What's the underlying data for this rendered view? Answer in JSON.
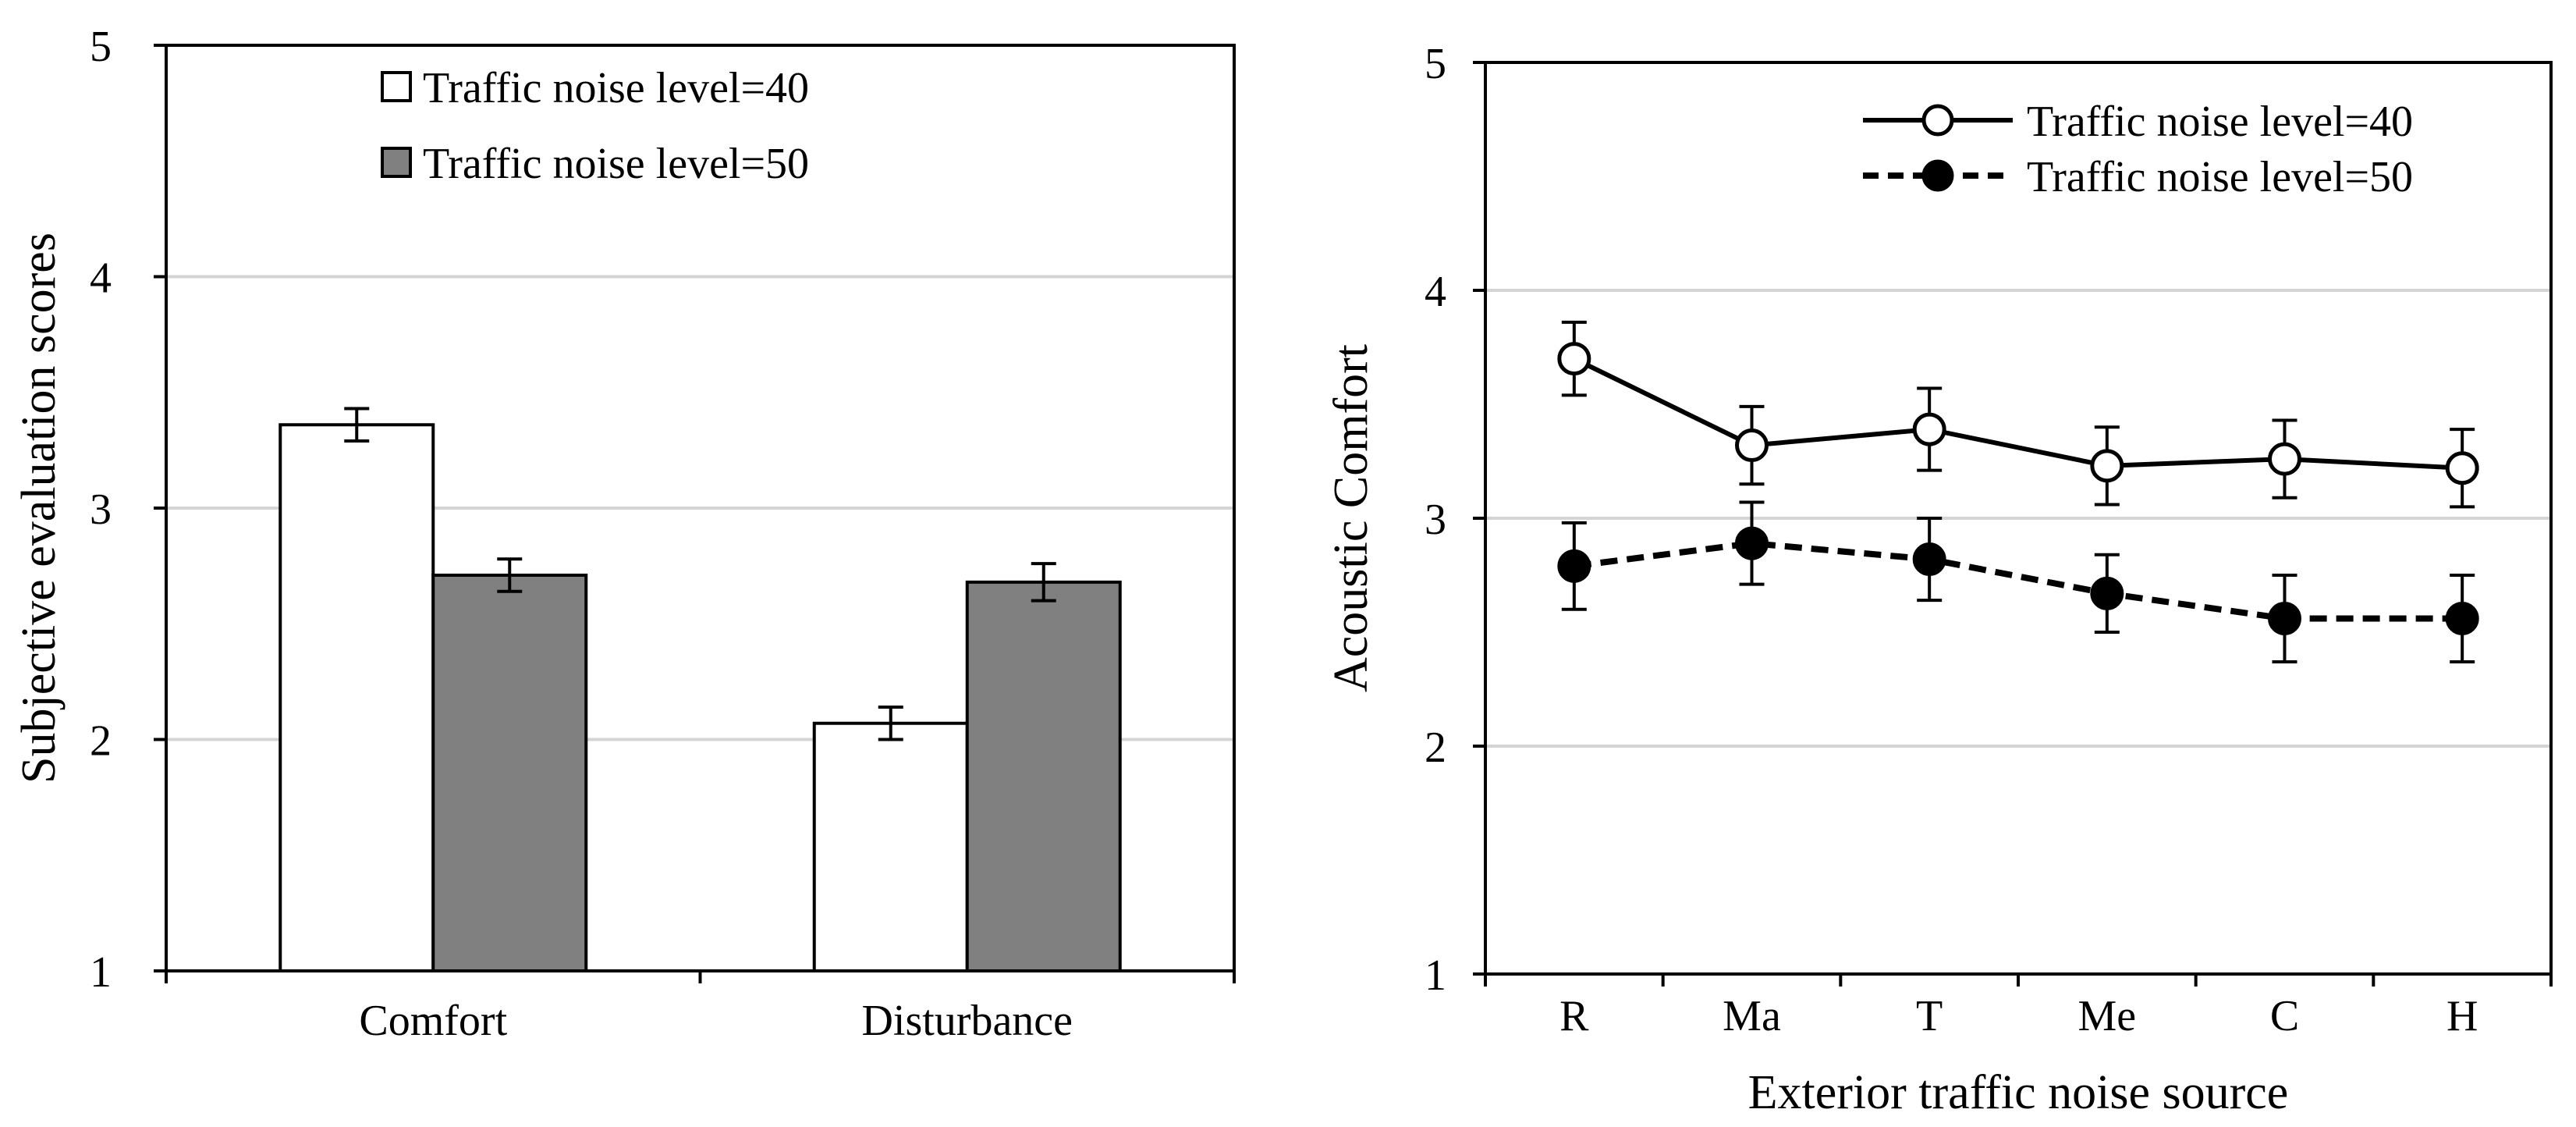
{
  "chart_data": [
    {
      "type": "bar",
      "categories": [
        "Comfort",
        "Disturbance"
      ],
      "series": [
        {
          "name": "Traffic noise level=40",
          "values": [
            3.36,
            2.07
          ],
          "errors": [
            0.07,
            0.07
          ],
          "color": "#ffffff"
        },
        {
          "name": "Traffic noise level=50",
          "values": [
            2.71,
            2.68
          ],
          "errors": [
            0.07,
            0.08
          ],
          "color": "#808080"
        }
      ],
      "ylabel": "Subjective evaluation scores",
      "xlabel": "",
      "ylim": [
        1,
        5
      ],
      "yticks": [
        "1",
        "2",
        "3",
        "4",
        "5"
      ],
      "grid": true,
      "legend_position": "top-center"
    },
    {
      "type": "line",
      "x": [
        "R",
        "Ma",
        "T",
        "Me",
        "C",
        "H"
      ],
      "series": [
        {
          "name": "Traffic noise level=40",
          "values": [
            3.7,
            3.32,
            3.39,
            3.23,
            3.26,
            3.22
          ],
          "errors": [
            0.16,
            0.17,
            0.18,
            0.17,
            0.17,
            0.17
          ],
          "marker": "open-circle",
          "line": "solid"
        },
        {
          "name": "Traffic noise level=50",
          "values": [
            2.79,
            2.89,
            2.82,
            2.67,
            2.56,
            2.56
          ],
          "errors": [
            0.19,
            0.18,
            0.18,
            0.17,
            0.19,
            0.19
          ],
          "marker": "filled-circle",
          "line": "dashed"
        }
      ],
      "ylabel": "Acoustic Comfort",
      "xlabel": "Exterior traffic noise source",
      "ylim": [
        1,
        5
      ],
      "yticks": [
        "1",
        "2",
        "3",
        "4",
        "5"
      ],
      "grid": true,
      "legend_position": "top-right"
    }
  ]
}
